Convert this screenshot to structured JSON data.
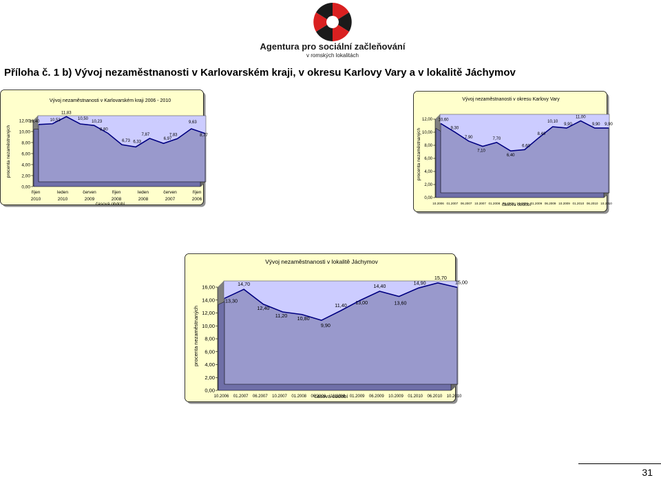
{
  "logo": {
    "org_name": "Agentura pro sociální začleňování",
    "org_sub": "v romských lokalitách"
  },
  "heading": "Příloha č. 1 b) Vývoj nezaměstnanosti v Karlovarském kraji, v okresu Karlovy Vary a v lokalitě Jáchymov",
  "page_number": "31",
  "colors": {
    "panel_bg": "#ffffcc",
    "plot_bg": "#ccccff",
    "area_fill": "#9999cc",
    "line": "#000080",
    "wall_side": "#808080"
  },
  "chart_data": [
    {
      "type": "area",
      "title": "Vývoj nezaměstnanosti v Karlovarském kraji 2006 - 2010",
      "xlabel": "časová období",
      "ylabel": "procenta nezaměstnaných",
      "ylim": [
        0,
        12
      ],
      "yticks": [
        "0,00",
        "2,00",
        "4,00",
        "6,00",
        "8,00",
        "10,00",
        "12,00"
      ],
      "xtick_labels": [
        [
          "říjen",
          "2010"
        ],
        [
          "leden",
          "2010"
        ],
        [
          "červen",
          "2009"
        ],
        [
          "říjen",
          "2008"
        ],
        [
          "leden",
          "2008"
        ],
        [
          "červen",
          "2007"
        ],
        [
          "říjen",
          "2006"
        ]
      ],
      "values": [
        10.4,
        10.53,
        11.83,
        10.5,
        10.23,
        8.8,
        6.73,
        6.33,
        7.87,
        6.97,
        7.83,
        9.63,
        8.77
      ],
      "labels": [
        "10,40",
        "10,53",
        "11,83",
        "10,50",
        "10,23",
        "8,80",
        "6,73",
        "6,33",
        "7,87",
        "6,97",
        "7,83",
        "9,63",
        "8,77"
      ]
    },
    {
      "type": "area",
      "title": "Vývoj nezaměstnanosti v okresu Karlovy Vary",
      "xlabel": "časová období",
      "ylabel": "procenta nezaměstnaných",
      "ylim": [
        0,
        12
      ],
      "yticks": [
        "0,00",
        "2,00",
        "4,00",
        "6,00",
        "8,00",
        "10,00",
        "12,00"
      ],
      "categories": [
        "10.2006",
        "01.2007",
        "06.2007",
        "10.2007",
        "01.2008",
        "06.2008",
        "10.2008",
        "01.2009",
        "06.2009",
        "10.2009",
        "01.2010",
        "06.2010",
        "10.2010"
      ],
      "values": [
        10.6,
        9.3,
        7.9,
        7.1,
        7.7,
        6.4,
        6.6,
        8.4,
        10.1,
        9.9,
        11.0,
        9.9,
        9.9
      ],
      "labels": [
        "10,60",
        "9,30",
        "7,90",
        "7,10",
        "7,70",
        "6,40",
        "6,60",
        "8,40",
        "10,10",
        "9,90",
        "11,00",
        "9,90",
        "9,90"
      ]
    },
    {
      "type": "area",
      "title": "Vývoj nezaměstnanosti v lokalitě Jáchymov",
      "xlabel": "časová období",
      "ylabel": "procenta nezaměstnaných",
      "ylim": [
        0,
        16
      ],
      "yticks": [
        "0,00",
        "2,00",
        "4,00",
        "6,00",
        "8,00",
        "10,00",
        "12,00",
        "14,00",
        "16,00"
      ],
      "categories": [
        "10.2006",
        "01.2007",
        "06.2007",
        "10.2007",
        "01.2008",
        "06.2008",
        "10.2008",
        "01.2009",
        "06.2009",
        "10.2009",
        "01.2010",
        "06.2010",
        "10.2010"
      ],
      "values": [
        13.3,
        14.7,
        12.4,
        11.2,
        10.8,
        9.9,
        11.4,
        13.0,
        14.4,
        13.6,
        14.9,
        15.7,
        15.0
      ],
      "labels": [
        "13,30",
        "14,70",
        "12,40",
        "11,20",
        "10,80",
        "9,90",
        "11,40",
        "13,00",
        "14,40",
        "13,60",
        "14,90",
        "15,70",
        "15,00"
      ]
    }
  ]
}
